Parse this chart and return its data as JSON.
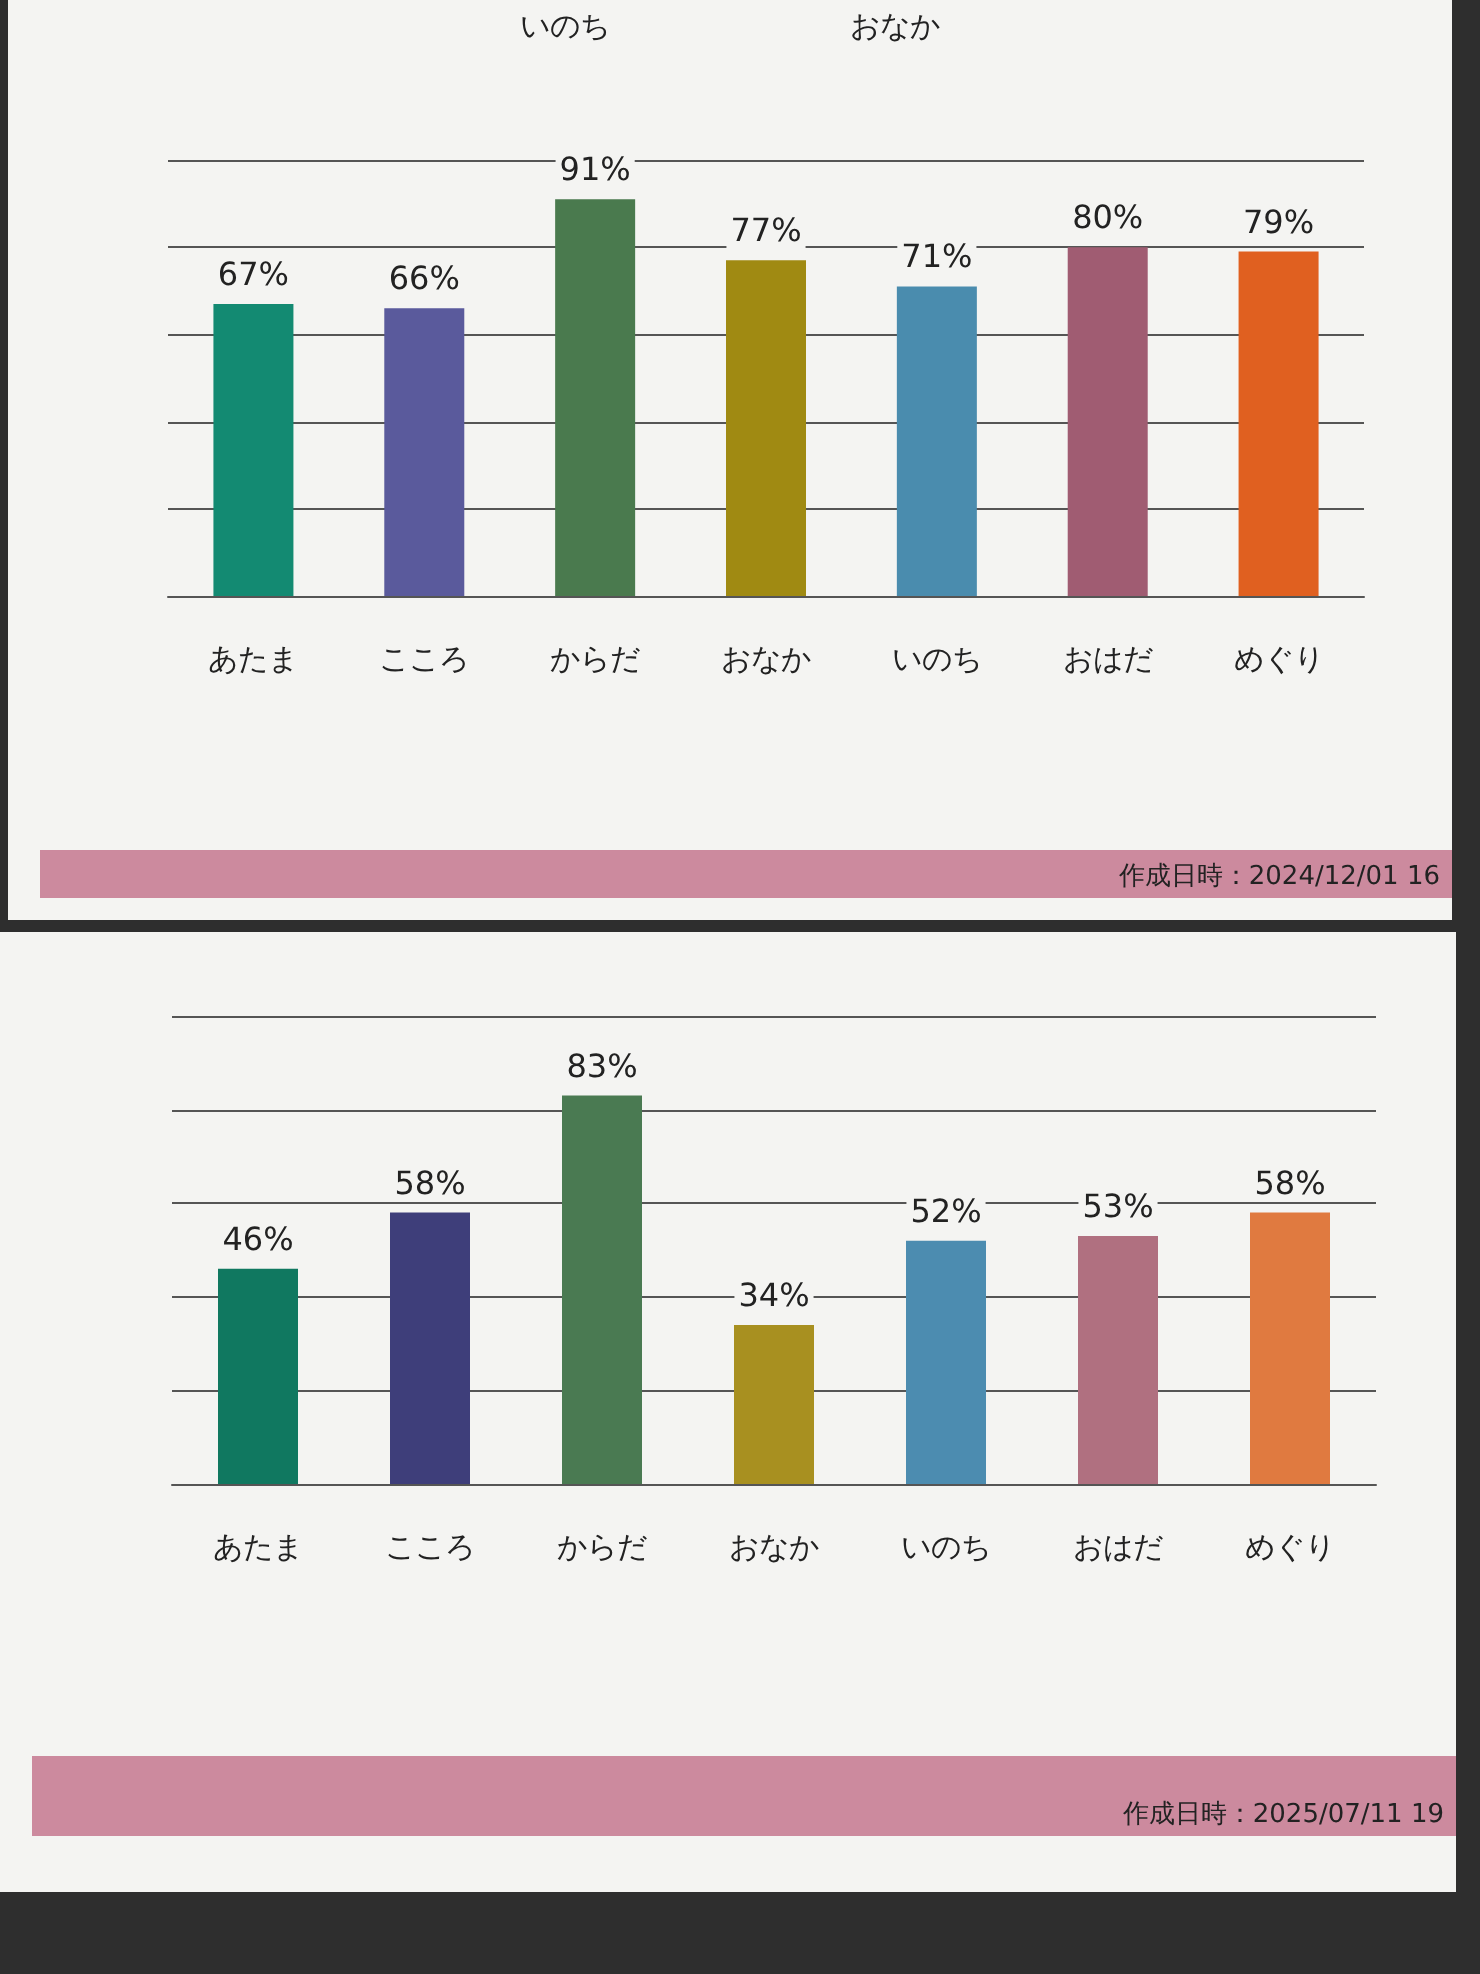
{
  "chart_data": [
    {
      "type": "bar",
      "categories": [
        "あたま",
        "こころ",
        "からだ",
        "おなか",
        "いのち",
        "おはだ",
        "めぐり"
      ],
      "values": [
        67,
        66,
        91,
        77,
        71,
        80,
        79
      ],
      "colors": [
        "#138a72",
        "#5a5a9c",
        "#4a7a4e",
        "#a08a12",
        "#4a8cae",
        "#a05c72",
        "#e06020"
      ],
      "value_labels": [
        "67%",
        "66%",
        "91%",
        "77%",
        "71%",
        "80%",
        "79%"
      ],
      "ylim": [
        0,
        100
      ],
      "yticks": [
        {
          "value": 0,
          "label": null
        },
        {
          "value": 20,
          "label": null
        },
        {
          "value": 40,
          "label": null
        },
        {
          "value": 60,
          "label": null
        },
        {
          "value": 80,
          "label": null
        },
        {
          "value": 100,
          "label": null
        }
      ],
      "grid": "y",
      "tick_labels": "x",
      "annotations": [
        "いのち",
        "おなか",
        "作成日時：2024/12/01 16"
      ]
    },
    {
      "type": "bar",
      "categories": [
        "あたま",
        "こころ",
        "からだ",
        "おなか",
        "いのち",
        "おはだ",
        "めぐり"
      ],
      "values": [
        46,
        58,
        83,
        34,
        52,
        53,
        58
      ],
      "colors": [
        "#107860",
        "#3e3e7a",
        "#4a7a52",
        "#a89020",
        "#4c8cb0",
        "#b07080",
        "#e07a40"
      ],
      "value_labels": [
        "46%",
        "58%",
        "83%",
        "34%",
        "52%",
        "53%",
        "58%"
      ],
      "ylim": [
        0,
        100
      ],
      "yticks": [
        {
          "value": 0,
          "label": null
        },
        {
          "value": 20,
          "label": null
        },
        {
          "value": 40,
          "label": null
        },
        {
          "value": 60,
          "label": null
        },
        {
          "value": 80,
          "label": null
        },
        {
          "value": 100,
          "label": null
        }
      ],
      "grid": "y",
      "tick_labels": "x",
      "annotations": [
        "作成日時：2025/07/11 19"
      ]
    }
  ]
}
